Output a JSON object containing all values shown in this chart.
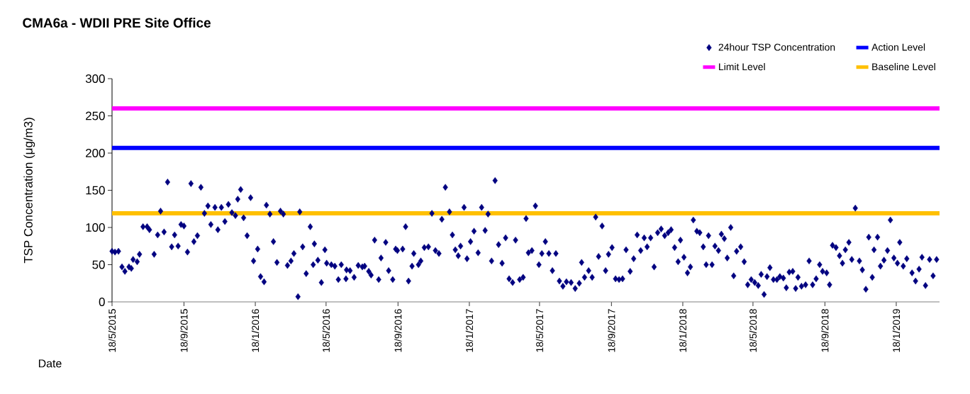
{
  "chart_data": {
    "type": "scatter",
    "title": "CMA6a - WDII PRE Site Office",
    "xlabel": "Date",
    "ylabel": "TSP Concentration (μg/m3)",
    "x": [
      "2015-05-18",
      "2015-05-23",
      "2015-05-29",
      "2015-06-04",
      "2015-06-09",
      "2015-06-16",
      "2015-06-20",
      "2015-06-23",
      "2015-06-30",
      "2015-07-04",
      "2015-07-10",
      "2015-07-17",
      "2015-07-21",
      "2015-07-29",
      "2015-08-04",
      "2015-08-09",
      "2015-08-15",
      "2015-08-21",
      "2015-08-28",
      "2015-09-02",
      "2015-09-08",
      "2015-09-13",
      "2015-09-18",
      "2015-09-24",
      "2015-09-30",
      "2015-10-05",
      "2015-10-11",
      "2015-10-17",
      "2015-10-23",
      "2015-10-29",
      "2015-11-03",
      "2015-11-10",
      "2015-11-15",
      "2015-11-21",
      "2015-11-27",
      "2015-12-03",
      "2015-12-09",
      "2015-12-15",
      "2015-12-19",
      "2015-12-24",
      "2015-12-29",
      "2016-01-04",
      "2016-01-10",
      "2016-01-15",
      "2016-01-22",
      "2016-01-27",
      "2016-02-02",
      "2016-02-06",
      "2016-02-12",
      "2016-02-18",
      "2016-02-24",
      "2016-03-01",
      "2016-03-06",
      "2016-03-13",
      "2016-03-19",
      "2016-03-24",
      "2016-03-31",
      "2016-04-03",
      "2016-04-08",
      "2016-04-14",
      "2016-04-21",
      "2016-04-26",
      "2016-04-28",
      "2016-05-04",
      "2016-05-10",
      "2016-05-16",
      "2016-05-19",
      "2016-05-27",
      "2016-06-02",
      "2016-06-08",
      "2016-06-13",
      "2016-06-21",
      "2016-06-22",
      "2016-06-28",
      "2016-07-05",
      "2016-07-12",
      "2016-07-19",
      "2016-07-23",
      "2016-07-30",
      "2016-08-03",
      "2016-08-09",
      "2016-08-16",
      "2016-08-20",
      "2016-08-28",
      "2016-09-02",
      "2016-09-09",
      "2016-09-14",
      "2016-09-17",
      "2016-09-26",
      "2016-10-01",
      "2016-10-06",
      "2016-10-12",
      "2016-10-15",
      "2016-10-23",
      "2016-10-27",
      "2016-11-02",
      "2016-11-09",
      "2016-11-15",
      "2016-11-21",
      "2016-11-27",
      "2016-12-02",
      "2016-12-08",
      "2016-12-15",
      "2016-12-20",
      "2016-12-25",
      "2016-12-30",
      "2017-01-03",
      "2017-01-09",
      "2017-01-14",
      "2017-01-20",
      "2017-01-26",
      "2017-02-02",
      "2017-02-08",
      "2017-02-14",
      "2017-02-19",
      "2017-02-25",
      "2017-03-03",
      "2017-03-09",
      "2017-03-15",
      "2017-03-21",
      "2017-03-27",
      "2017-04-02",
      "2017-04-07",
      "2017-04-14",
      "2017-04-20",
      "2017-04-25",
      "2017-04-29",
      "2017-05-05",
      "2017-05-11",
      "2017-05-17",
      "2017-05-22",
      "2017-05-28",
      "2017-06-03",
      "2017-06-09",
      "2017-06-15",
      "2017-06-21",
      "2017-06-27",
      "2017-07-03",
      "2017-07-11",
      "2017-07-18",
      "2017-07-25",
      "2017-07-29",
      "2017-08-03",
      "2017-08-10",
      "2017-08-16",
      "2017-08-22",
      "2017-08-27",
      "2017-09-02",
      "2017-09-08",
      "2017-09-13",
      "2017-09-19",
      "2017-09-25",
      "2017-10-01",
      "2017-10-07",
      "2017-10-13",
      "2017-10-20",
      "2017-10-26",
      "2017-11-01",
      "2017-11-07",
      "2017-11-13",
      "2017-11-18",
      "2017-11-24",
      "2017-11-30",
      "2017-12-06",
      "2017-12-12",
      "2017-12-18",
      "2017-12-24",
      "2017-12-29",
      "2018-01-04",
      "2018-01-10",
      "2018-01-14",
      "2018-01-20",
      "2018-01-26",
      "2018-01-31",
      "2018-02-05",
      "2018-02-11",
      "2018-02-16",
      "2018-02-22",
      "2018-02-27",
      "2018-03-03",
      "2018-03-09",
      "2018-03-14",
      "2018-03-20",
      "2018-03-25",
      "2018-03-30",
      "2018-04-04",
      "2018-04-10",
      "2018-04-15",
      "2018-04-20",
      "2018-04-27",
      "2018-05-03",
      "2018-05-09",
      "2018-05-15",
      "2018-05-21",
      "2018-05-27",
      "2018-06-01",
      "2018-06-06",
      "2018-06-11",
      "2018-06-16",
      "2018-06-22",
      "2018-06-28",
      "2018-07-03",
      "2018-07-09",
      "2018-07-14",
      "2018-07-19",
      "2018-07-25",
      "2018-07-30",
      "2018-08-03",
      "2018-08-09",
      "2018-08-16",
      "2018-08-22",
      "2018-08-28",
      "2018-09-03",
      "2018-09-09",
      "2018-09-14",
      "2018-09-21",
      "2018-09-26",
      "2018-10-01",
      "2018-10-07",
      "2018-10-13",
      "2018-10-18",
      "2018-10-23",
      "2018-10-29",
      "2018-11-03",
      "2018-11-09",
      "2018-11-16",
      "2018-11-21",
      "2018-11-27",
      "2018-12-02",
      "2018-12-08",
      "2018-12-11",
      "2018-12-17",
      "2018-12-22",
      "2018-12-28",
      "2019-01-03",
      "2019-01-08",
      "2019-01-14",
      "2019-01-20",
      "2019-01-24",
      "2019-01-30",
      "2019-02-05",
      "2019-02-14",
      "2019-02-20",
      "2019-02-26",
      "2019-03-03",
      "2019-03-09",
      "2019-03-16",
      "2019-03-22",
      "2019-03-28"
    ],
    "series": [
      {
        "name": "24hour TSP Concentration",
        "color": "#000080",
        "values": [
          68,
          67,
          68,
          47,
          41,
          47,
          45,
          57,
          54,
          64,
          101,
          101,
          97,
          64,
          90,
          122,
          94,
          161,
          74,
          90,
          75,
          104,
          102,
          67,
          159,
          81,
          89,
          154,
          119,
          129,
          104,
          127,
          97,
          127,
          108,
          131,
          120,
          116,
          138,
          151,
          113,
          89,
          140,
          55,
          71,
          34,
          27,
          130,
          118,
          81,
          53,
          122,
          118,
          49,
          55,
          65,
          7,
          121,
          74,
          38,
          101,
          50,
          78,
          56,
          26,
          70,
          52,
          50,
          48,
          30,
          50,
          31,
          43,
          42,
          33,
          49,
          47,
          48,
          41,
          36,
          83,
          30,
          59,
          80,
          42,
          30,
          71,
          69,
          71,
          101,
          28,
          48,
          65,
          50,
          55,
          73,
          74,
          119,
          69,
          65,
          111,
          154,
          121,
          90,
          70,
          62,
          75,
          127,
          58,
          81,
          95,
          66,
          127,
          96,
          118,
          55,
          163,
          77,
          52,
          86,
          31,
          26,
          83,
          30,
          33,
          112,
          66,
          69,
          129,
          50,
          65,
          81,
          65,
          42,
          65,
          28,
          21,
          27,
          26,
          18,
          25,
          53,
          33,
          42,
          33,
          114,
          61,
          102,
          42,
          64,
          73,
          31,
          30,
          31,
          70,
          41,
          58,
          90,
          69,
          86,
          74,
          86,
          47,
          93,
          98,
          89,
          93,
          97,
          73,
          54,
          83,
          60,
          39,
          47,
          110,
          95,
          93,
          74,
          50,
          89,
          50,
          75,
          69,
          91,
          85,
          59,
          100,
          35,
          68,
          74,
          54,
          23,
          30,
          26,
          22,
          37,
          10,
          34,
          46,
          30,
          30,
          34,
          32,
          19,
          40,
          41,
          18,
          33,
          21,
          23,
          55,
          23,
          31,
          50,
          41,
          39,
          23,
          76,
          73,
          62,
          52,
          70,
          80,
          57,
          126,
          55,
          43,
          17,
          87,
          33,
          70,
          87,
          48,
          56,
          69,
          110,
          59,
          52,
          80,
          48,
          58,
          39,
          28,
          44,
          60,
          22,
          57,
          35,
          57
        ]
      }
    ],
    "marker": "diamond",
    "ref_lines": [
      {
        "axis": "y",
        "value": 207,
        "label": "Action Level",
        "color": "#0000ff"
      },
      {
        "axis": "y",
        "value": 260,
        "label": "Limit Level",
        "color": "#ff00ff"
      },
      {
        "axis": "y",
        "value": 119,
        "label": "Baseline Level",
        "color": "#ffc000"
      }
    ],
    "xlim": [
      "2015-05-18",
      "2019-04-02"
    ],
    "xticks": [
      {
        "value": "2015-05-18",
        "label": "18/5/2015"
      },
      {
        "value": "2015-09-18",
        "label": "18/9/2015"
      },
      {
        "value": "2016-01-18",
        "label": "18/1/2016"
      },
      {
        "value": "2016-05-18",
        "label": "18/5/2016"
      },
      {
        "value": "2016-09-18",
        "label": "18/9/2016"
      },
      {
        "value": "2017-01-18",
        "label": "18/1/2017"
      },
      {
        "value": "2017-05-18",
        "label": "18/5/2017"
      },
      {
        "value": "2017-09-18",
        "label": "18/9/2017"
      },
      {
        "value": "2018-01-18",
        "label": "18/1/2018"
      },
      {
        "value": "2018-05-18",
        "label": "18/5/2018"
      },
      {
        "value": "2018-09-18",
        "label": "18/9/2018"
      },
      {
        "value": "2019-01-18",
        "label": "18/1/2019"
      }
    ],
    "ylim": [
      0,
      300
    ],
    "yticks": [
      0,
      50,
      100,
      150,
      200,
      250,
      300
    ],
    "legend": "top right"
  }
}
